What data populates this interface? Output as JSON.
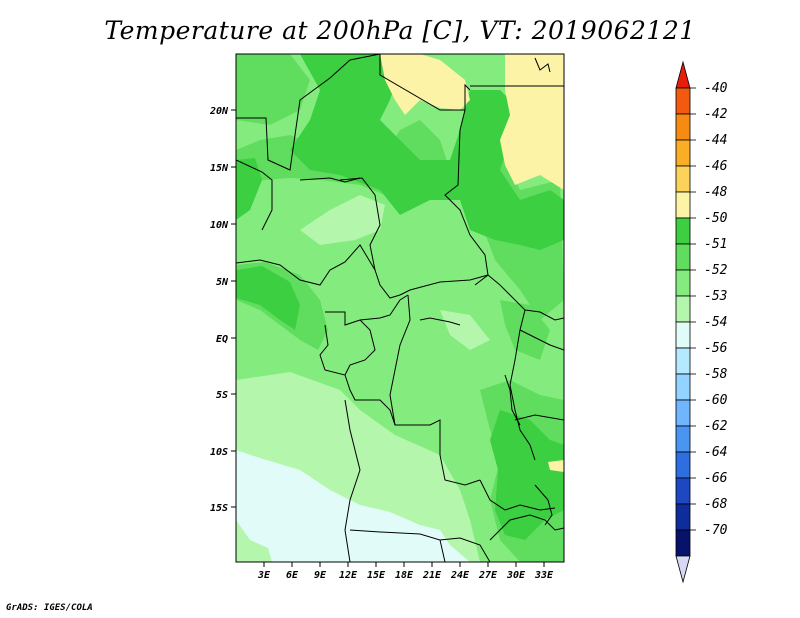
{
  "title": "Temperature at 200hPa [C], VT: 2019062121",
  "credit": "GrADS: IGES/COLA",
  "map": {
    "lat_labels": [
      "20N",
      "15N",
      "10N",
      "5N",
      "EQ",
      "5S",
      "10S",
      "15S"
    ],
    "lon_labels": [
      "3E",
      "6E",
      "9E",
      "12E",
      "15E",
      "18E",
      "21E",
      "24E",
      "27E",
      "30E",
      "33E"
    ]
  },
  "colorbar": {
    "labels": [
      "-40",
      "-42",
      "-44",
      "-46",
      "-48",
      "-50",
      "-51",
      "-52",
      "-53",
      "-54",
      "-56",
      "-58",
      "-60",
      "-62",
      "-64",
      "-66",
      "-68",
      "-70"
    ],
    "colors": [
      "#e81e0c",
      "#f25a10",
      "#f78b12",
      "#f9ae26",
      "#fbd35a",
      "#fdf3a7",
      "#3ccf41",
      "#60dd5e",
      "#84ec7e",
      "#b4f6ac",
      "#e1fcf8",
      "#b4e9ff",
      "#92d3ff",
      "#6fb6ff",
      "#4b95f2",
      "#2f6ee0",
      "#1d48c2",
      "#0e2c9a",
      "#07126b",
      "#d7d7f6"
    ]
  }
}
